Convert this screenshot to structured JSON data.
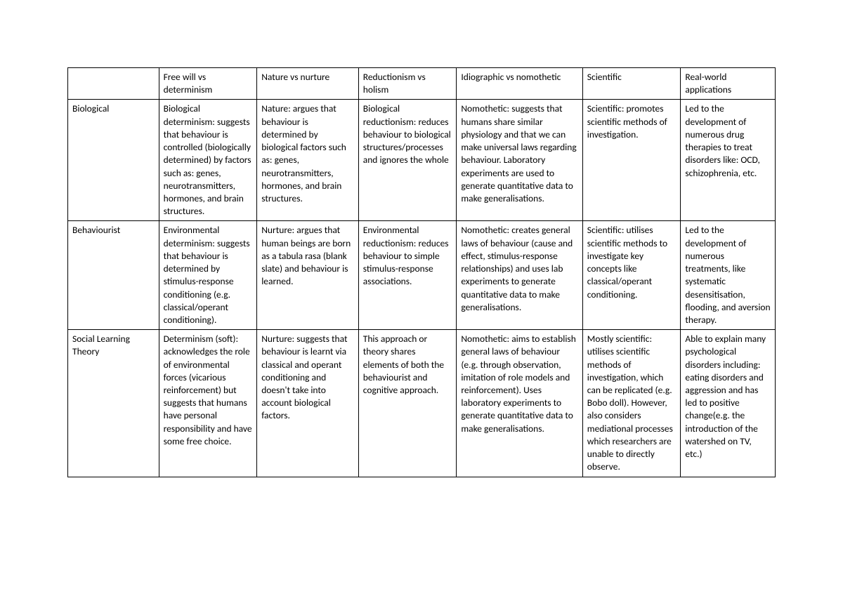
{
  "table": {
    "border_color": "#000000",
    "background_color": "#ffffff",
    "text_color": "#000000",
    "font_size_pt": 10,
    "columns": [
      "",
      "Free will vs determinism",
      "Nature vs nurture",
      "Reductionism vs holism",
      "Idiographic vs nomothetic",
      "Scientific",
      "Real-world applications"
    ],
    "rows": [
      {
        "label": "Biological",
        "cells": [
          "Biological determinism: suggests that behaviour is controlled (biologically determined) by factors such as: genes, neurotransmitters, hormones, and brain structures.",
          "Nature: argues that behaviour is determined by biological factors such as: genes, neurotransmitters, hormones, and brain structures.",
          "Biological reductionism: reduces behaviour to biological structures/processes and ignores the whole",
          "Nomothetic: suggests that humans share similar physiology and that we can make universal laws regarding behaviour. Laboratory experiments are used to generate quantitative data to make generalisations.",
          "Scientific: promotes scientific methods of investigation.",
          "Led to the development of numerous drug therapies to treat disorders like: OCD, schizophrenia, etc."
        ]
      },
      {
        "label": "Behaviourist",
        "cells": [
          "Environmental determinism: suggests that behaviour is determined by stimulus-response conditioning (e.g. classical/operant conditioning).",
          "Nurture: argues that human beings are born as a tabula rasa (blank slate) and behaviour is learned.",
          "Environmental reductionism: reduces behaviour to simple stimulus-response associations.",
          "Nomothetic: creates general laws of behaviour (cause and effect, stimulus-response relationships) and uses lab experiments to generate quantitative data to make generalisations.",
          "Scientific: utilises scientific methods to investigate key concepts like classical/operant conditioning.",
          "Led to the development of numerous treatments, like systematic desensitisation, flooding, and aversion therapy."
        ]
      },
      {
        "label": "Social Learning Theory",
        "cells": [
          "Determinism (soft): acknowledges the role of environmental forces (vicarious reinforcement) but suggests that humans have personal responsibility and have some free choice.",
          "Nurture: suggests that behaviour is learnt via classical and operant conditioning and doesn't take into account biological factors.",
          "This approach or theory shares elements of both the behaviourist and cognitive approach.",
          "Nomothetic: aims to establish general laws of behaviour (e.g. through observation, imitation of role models and reinforcement). Uses laboratory experiments to generate quantitative data to make generalisations.",
          "Mostly scientific: utilises scientific methods of investigation, which can be replicated (e.g. Bobo doll). However, also considers mediational processes which researchers are unable to directly observe.",
          "Able to explain many psychological disorders including: eating disorders and aggression and has led to positive change(e.g. the introduction of the watershed on TV, etc.)"
        ]
      }
    ]
  }
}
